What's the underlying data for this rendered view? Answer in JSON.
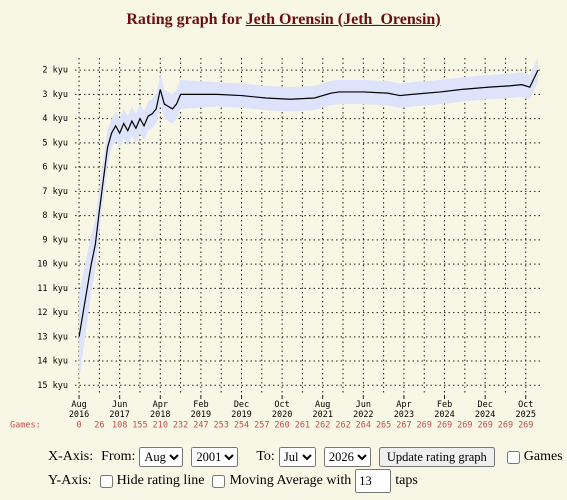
{
  "chart_data": {
    "type": "line",
    "title_prefix": "Rating graph for",
    "title_link": "Jeth Orensin (Jeth_Orensin)",
    "x": [
      "2016-08",
      "2016-09",
      "2016-10",
      "2016-11",
      "2016-12",
      "2017-01",
      "2017-02",
      "2017-03",
      "2017-04",
      "2017-05",
      "2017-06",
      "2017-07",
      "2017-08",
      "2017-09",
      "2017-10",
      "2017-11",
      "2017-12",
      "2018-01",
      "2018-02",
      "2018-03",
      "2018-04",
      "2018-05",
      "2018-06",
      "2018-07",
      "2018-08",
      "2018-09",
      "2019-06",
      "2019-12",
      "2020-06",
      "2020-12",
      "2021-06",
      "2021-10",
      "2021-12",
      "2022-06",
      "2022-12",
      "2023-03",
      "2023-06",
      "2024-01",
      "2024-06",
      "2025-01",
      "2025-06",
      "2025-09",
      "2025-11",
      "2026-01"
    ],
    "series": [
      {
        "color": "#000000",
        "band_color": "#dce3fb",
        "values": [
          13.0,
          12.0,
          11.0,
          10.0,
          9.2,
          7.8,
          6.5,
          5.2,
          4.6,
          4.3,
          4.6,
          4.2,
          4.5,
          4.1,
          4.4,
          4.0,
          4.3,
          3.9,
          3.8,
          3.6,
          2.8,
          3.4,
          3.5,
          3.6,
          3.4,
          3.0,
          3.0,
          3.05,
          3.15,
          3.2,
          3.15,
          2.95,
          2.9,
          2.9,
          2.95,
          3.05,
          3.0,
          2.9,
          2.8,
          2.7,
          2.65,
          2.6,
          2.7,
          2.0
        ],
        "band_low": [
          11.2,
          10.4,
          9.6,
          8.8,
          8.2,
          6.9,
          5.7,
          4.5,
          4.0,
          3.7,
          4.0,
          3.6,
          3.9,
          3.5,
          3.8,
          3.4,
          3.7,
          3.3,
          3.2,
          3.0,
          2.2,
          2.8,
          2.9,
          3.0,
          2.8,
          2.4,
          2.5,
          2.55,
          2.65,
          2.7,
          2.65,
          2.45,
          2.4,
          2.4,
          2.45,
          2.55,
          2.5,
          2.4,
          2.3,
          2.2,
          2.15,
          2.1,
          2.2,
          1.5
        ],
        "band_high": [
          14.8,
          13.6,
          12.4,
          11.2,
          10.2,
          8.7,
          7.3,
          5.9,
          5.2,
          4.9,
          5.2,
          4.8,
          5.1,
          4.7,
          5.0,
          4.6,
          4.9,
          4.5,
          4.4,
          4.2,
          3.4,
          4.0,
          4.1,
          4.2,
          4.0,
          3.6,
          3.5,
          3.55,
          3.65,
          3.7,
          3.65,
          3.45,
          3.4,
          3.4,
          3.45,
          3.55,
          3.5,
          3.4,
          3.3,
          3.2,
          3.15,
          3.1,
          3.2,
          2.5
        ]
      }
    ],
    "xlim": [
      "2016-07",
      "2026-02"
    ],
    "xticks": [
      {
        "value": "2016-08",
        "label": "Aug 2016"
      },
      {
        "value": "2017-06",
        "label": "Jun 2017"
      },
      {
        "value": "2018-04",
        "label": "Apr 2018"
      },
      {
        "value": "2019-02",
        "label": "Feb 2019"
      },
      {
        "value": "2019-12",
        "label": "Dec 2019"
      },
      {
        "value": "2020-10",
        "label": "Oct 2020"
      },
      {
        "value": "2021-08",
        "label": "Aug 2021"
      },
      {
        "value": "2022-06",
        "label": "Jun 2022"
      },
      {
        "value": "2023-04",
        "label": "Apr 2023"
      },
      {
        "value": "2024-02",
        "label": "Feb 2024"
      },
      {
        "value": "2024-12",
        "label": "Dec 2024"
      },
      {
        "value": "2025-10",
        "label": "Oct 2025"
      }
    ],
    "ylim": [
      15.4,
      1.5
    ],
    "yticks": [
      {
        "value": 2,
        "label": "2 kyu"
      },
      {
        "value": 3,
        "label": "3 kyu"
      },
      {
        "value": 4,
        "label": "4 kyu"
      },
      {
        "value": 5,
        "label": "5 kyu"
      },
      {
        "value": 6,
        "label": "6 kyu"
      },
      {
        "value": 7,
        "label": "7 kyu"
      },
      {
        "value": 8,
        "label": "8 kyu"
      },
      {
        "value": 9,
        "label": "9 kyu"
      },
      {
        "value": 10,
        "label": "10 kyu"
      },
      {
        "value": 11,
        "label": "11 kyu"
      },
      {
        "value": 12,
        "label": "12 kyu"
      },
      {
        "value": 13,
        "label": "13 kyu"
      },
      {
        "value": 14,
        "label": "14 kyu"
      },
      {
        "value": 15,
        "label": "15 kyu"
      }
    ],
    "grid": true,
    "games_label": "Games:",
    "games_color": "#c0504d",
    "games_x": [
      "2016-08",
      "2017-01",
      "2017-06",
      "2017-11",
      "2018-04",
      "2018-09",
      "2019-02",
      "2019-07",
      "2019-12",
      "2020-05",
      "2020-10",
      "2021-03",
      "2021-08",
      "2022-01",
      "2022-06",
      "2022-11",
      "2023-04",
      "2023-09",
      "2024-02",
      "2024-07",
      "2024-12",
      "2025-05",
      "2025-10"
    ],
    "games": [
      0,
      26,
      108,
      155,
      210,
      232,
      247,
      253,
      254,
      257,
      260,
      261,
      262,
      262,
      264,
      265,
      267,
      269,
      269,
      269,
      269,
      269,
      269
    ]
  },
  "controls": {
    "x_axis": "X-Axis:",
    "from": "From:",
    "from_month": "Aug",
    "from_year": "2001",
    "to": "To:",
    "to_month": "Jul",
    "to_year": "2026",
    "update": "Update rating graph",
    "games": "Games",
    "y_axis": "Y-Axis:",
    "hide_line": "Hide rating line",
    "moving_avg": "Moving Average with",
    "taps_value": "13",
    "taps": "taps"
  }
}
